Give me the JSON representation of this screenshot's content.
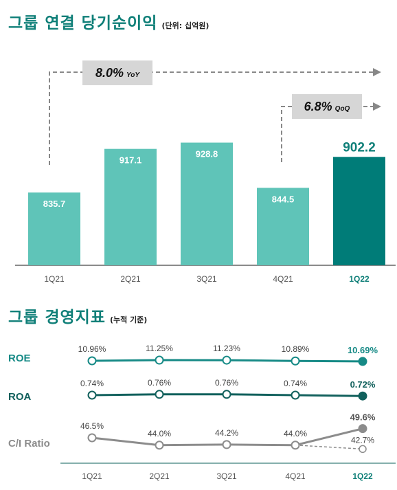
{
  "header1": {
    "title": "그룹 연결 당기순이익",
    "unit": "(단위: 십억원)"
  },
  "header2": {
    "title": "그룹 경영지표",
    "unit": "(누적 기준)"
  },
  "colors": {
    "accent": "#0f7f78",
    "bar": "#5fc4b8",
    "bar_highlight": "#007c78",
    "roe": "#168a86",
    "roa": "#11605c",
    "ci": "#8c8c8c"
  },
  "chart_data": [
    {
      "type": "bar",
      "title": "그룹 연결 당기순이익",
      "unit": "(단위: 십억원)",
      "categories": [
        "1Q21",
        "2Q21",
        "3Q21",
        "4Q21",
        "1Q22"
      ],
      "values": [
        835.7,
        917.1,
        928.8,
        844.5,
        902.2
      ],
      "value_labels": [
        "835.7",
        "917.1",
        "928.8",
        "844.5",
        "902.2"
      ],
      "highlight": "1Q22",
      "annotations": [
        {
          "from": "1Q21",
          "to": "1Q22",
          "value": "8.0%",
          "tag": "YoY"
        },
        {
          "from": "4Q21",
          "to": "1Q22",
          "value": "6.8%",
          "tag": "QoQ"
        }
      ]
    },
    {
      "type": "line",
      "title": "그룹 경영지표",
      "unit": "(누적 기준)",
      "categories": [
        "1Q21",
        "2Q21",
        "3Q21",
        "4Q21",
        "1Q22"
      ],
      "series": [
        {
          "name": "ROE",
          "values": [
            10.96,
            11.25,
            11.23,
            10.89,
            10.69
          ],
          "labels": [
            "10.96%",
            "11.25%",
            "11.23%",
            "10.89%",
            "10.69%"
          ]
        },
        {
          "name": "ROA",
          "values": [
            0.74,
            0.76,
            0.76,
            0.74,
            0.72
          ],
          "labels": [
            "0.74%",
            "0.76%",
            "0.76%",
            "0.74%",
            "0.72%"
          ]
        },
        {
          "name": "C/I Ratio",
          "values": [
            46.5,
            44.0,
            44.2,
            44.0,
            49.6
          ],
          "labels": [
            "46.5%",
            "44.0%",
            "44.2%",
            "44.0%",
            "49.6%"
          ],
          "alt_point": {
            "category": "1Q22",
            "value": 42.7,
            "label": "42.7%"
          }
        }
      ]
    }
  ]
}
